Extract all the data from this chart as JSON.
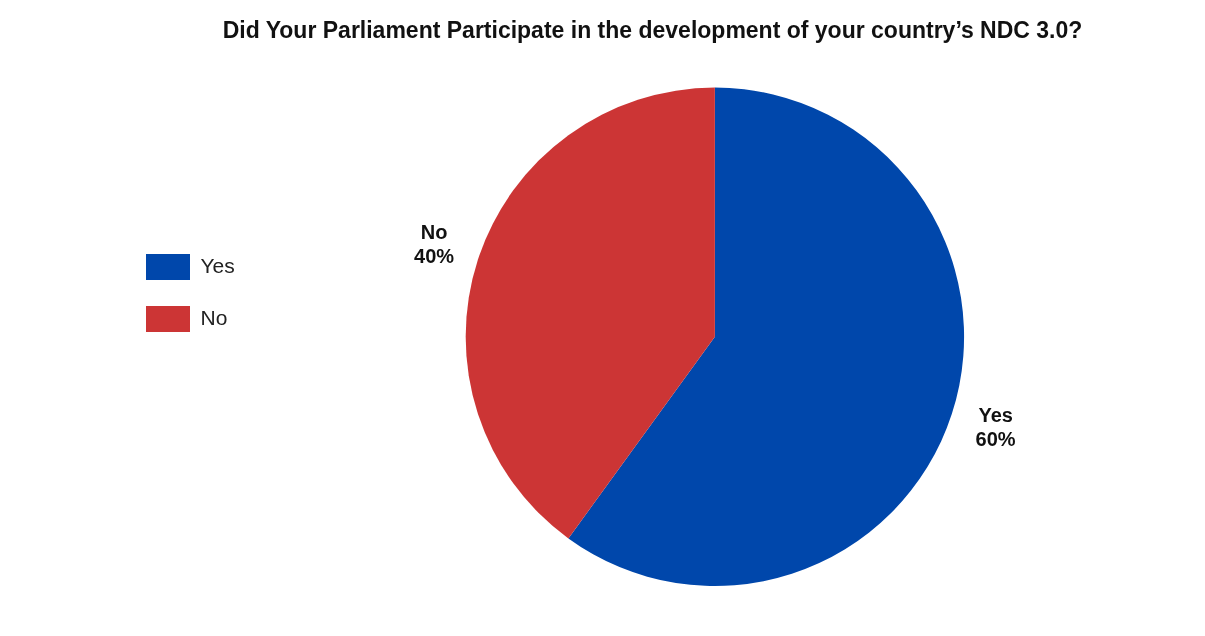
{
  "chart_data": {
    "type": "pie",
    "title": "Did Your Parliament Participate in the development of your country’s NDC 3.0?",
    "categories": [
      "Yes",
      "No"
    ],
    "values": [
      60,
      40
    ],
    "colors": [
      "#0047ab",
      "#cc3535"
    ],
    "value_labels": [
      "60%",
      "40%"
    ],
    "legend": "left"
  }
}
